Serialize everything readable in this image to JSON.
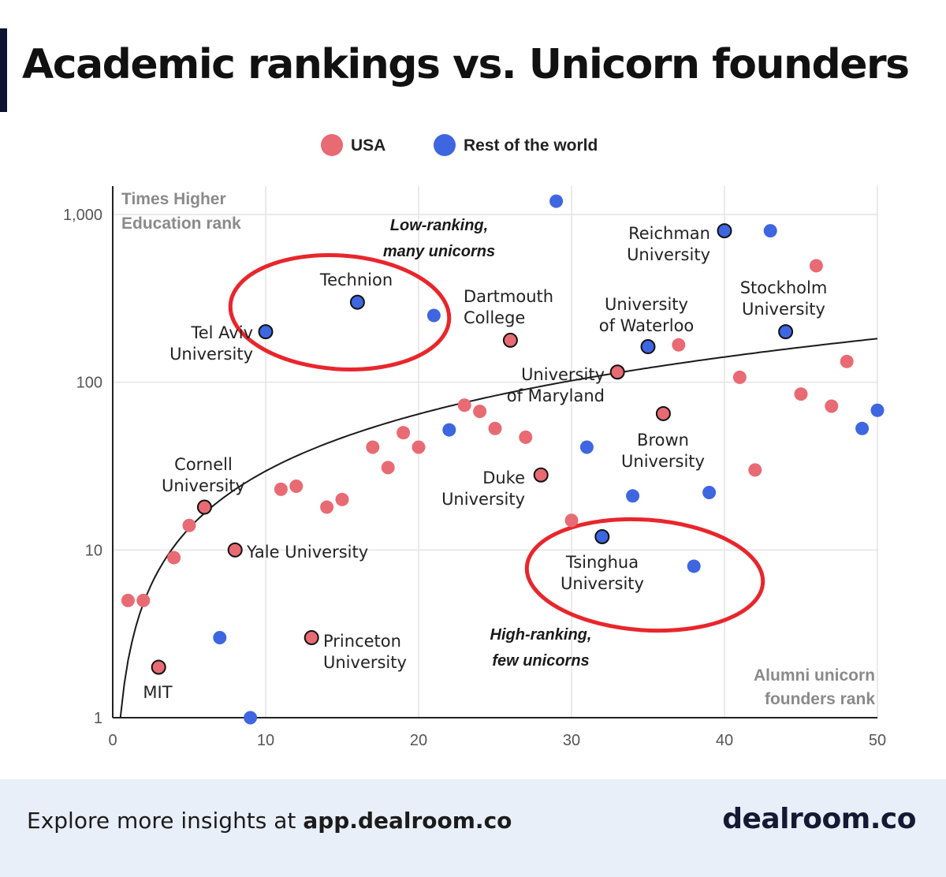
{
  "header": {
    "title": "Academic rankings vs. Unicorn founders"
  },
  "footer": {
    "prefix": "Explore more insights at ",
    "link": "app.dealroom.co",
    "brand": "dealroom.co"
  },
  "chart_data": {
    "type": "scatter",
    "y_scale": "log",
    "xlim": [
      0,
      50
    ],
    "ylim": [
      1,
      1000
    ],
    "x_ticks": [
      0,
      10,
      20,
      30,
      40,
      50
    ],
    "y_ticks": [
      {
        "value": 1,
        "label": "1"
      },
      {
        "value": 10,
        "label": "10"
      },
      {
        "value": 100,
        "label": "100"
      },
      {
        "value": 1000,
        "label": "1,000"
      }
    ],
    "ylabel": [
      "Times Higher",
      "Education rank"
    ],
    "xlabel": [
      "Alumni unicorn",
      "founders rank"
    ],
    "legend": {
      "placement": "top-center",
      "entries": [
        {
          "name": "USA",
          "color": "#e86a73"
        },
        {
          "name": "Rest of the world",
          "color": "#3d66e0"
        }
      ]
    },
    "colors": {
      "USA": "#e86a73",
      "RoW": "#3d66e0",
      "trend": "#1a1a1a",
      "circle": "#e8262c",
      "annotation": "#1a1a1a",
      "grid": "#e4e4e4"
    },
    "trend": {
      "description": "log fit",
      "a": 2.4,
      "b": 0.8
    },
    "series": [
      {
        "name": "USA",
        "points": [
          {
            "x": 1,
            "y": 5
          },
          {
            "x": 2,
            "y": 5
          },
          {
            "x": 3,
            "y": 2,
            "label": "MIT"
          },
          {
            "x": 4,
            "y": 9
          },
          {
            "x": 5,
            "y": 14
          },
          {
            "x": 6,
            "y": 18,
            "label": "Cornell University"
          },
          {
            "x": 8,
            "y": 10,
            "label": "Yale University"
          },
          {
            "x": 11,
            "y": 23
          },
          {
            "x": 12,
            "y": 24
          },
          {
            "x": 13,
            "y": 3,
            "label": "Princeton University"
          },
          {
            "x": 14,
            "y": 18
          },
          {
            "x": 15,
            "y": 20
          },
          {
            "x": 17,
            "y": 41
          },
          {
            "x": 18,
            "y": 31
          },
          {
            "x": 19,
            "y": 50
          },
          {
            "x": 20,
            "y": 41
          },
          {
            "x": 23,
            "y": 73
          },
          {
            "x": 24,
            "y": 67
          },
          {
            "x": 25,
            "y": 53
          },
          {
            "x": 26,
            "y": 178,
            "label": "Dartmouth College"
          },
          {
            "x": 27,
            "y": 47
          },
          {
            "x": 28,
            "y": 28,
            "label": "Duke University"
          },
          {
            "x": 30,
            "y": 15
          },
          {
            "x": 33,
            "y": 115,
            "label": "University of Maryland"
          },
          {
            "x": 36,
            "y": 65,
            "label": "Brown University"
          },
          {
            "x": 37,
            "y": 167
          },
          {
            "x": 41,
            "y": 107
          },
          {
            "x": 42,
            "y": 30
          },
          {
            "x": 45,
            "y": 85
          },
          {
            "x": 46,
            "y": 495
          },
          {
            "x": 47,
            "y": 72
          },
          {
            "x": 48,
            "y": 133
          }
        ]
      },
      {
        "name": "Rest of the world",
        "points": [
          {
            "x": 7,
            "y": 3
          },
          {
            "x": 9,
            "y": 1
          },
          {
            "x": 10,
            "y": 200,
            "label": "Tel Aviv University"
          },
          {
            "x": 16,
            "y": 300,
            "label": "Technion"
          },
          {
            "x": 21,
            "y": 250
          },
          {
            "x": 22,
            "y": 52
          },
          {
            "x": 29,
            "y": 1200
          },
          {
            "x": 31,
            "y": 41
          },
          {
            "x": 32,
            "y": 12,
            "label": "Tsinghua University"
          },
          {
            "x": 34,
            "y": 21
          },
          {
            "x": 35,
            "y": 163,
            "label": "University of Waterloo"
          },
          {
            "x": 38,
            "y": 8
          },
          {
            "x": 39,
            "y": 22
          },
          {
            "x": 40,
            "y": 800,
            "label": "Reichman University"
          },
          {
            "x": 43,
            "y": 800
          },
          {
            "x": 44,
            "y": 200,
            "label": "Stockholm University"
          },
          {
            "x": 49,
            "y": 53
          },
          {
            "x": 50,
            "y": 68
          }
        ]
      }
    ],
    "point_labels": [
      {
        "id": "mit",
        "lines": [
          "MIT"
        ]
      },
      {
        "id": "cornell",
        "lines": [
          "Cornell",
          "University"
        ]
      },
      {
        "id": "yale",
        "lines": [
          "Yale University"
        ]
      },
      {
        "id": "princeton",
        "lines": [
          "Princeton",
          "University"
        ]
      },
      {
        "id": "telaviv",
        "lines": [
          "Tel Aviv",
          "University"
        ]
      },
      {
        "id": "technion",
        "lines": [
          "Technion"
        ]
      },
      {
        "id": "dartmouth",
        "lines": [
          "Dartmouth",
          "College"
        ]
      },
      {
        "id": "duke",
        "lines": [
          "Duke",
          "University"
        ]
      },
      {
        "id": "maryland",
        "lines": [
          "University",
          "of Maryland"
        ]
      },
      {
        "id": "waterloo",
        "lines": [
          "University",
          "of Waterloo"
        ]
      },
      {
        "id": "brown",
        "lines": [
          "Brown",
          "University"
        ]
      },
      {
        "id": "tsinghua",
        "lines": [
          "Tsinghua",
          "University"
        ]
      },
      {
        "id": "reichman",
        "lines": [
          "Reichman",
          "University"
        ]
      },
      {
        "id": "stockholm",
        "lines": [
          "Stockholm",
          "University"
        ]
      }
    ],
    "annotations": [
      {
        "id": "low",
        "lines": [
          "Low-ranking,",
          "many unicorns"
        ]
      },
      {
        "id": "high",
        "lines": [
          "High-ranking,",
          "few unicorns"
        ]
      }
    ]
  }
}
